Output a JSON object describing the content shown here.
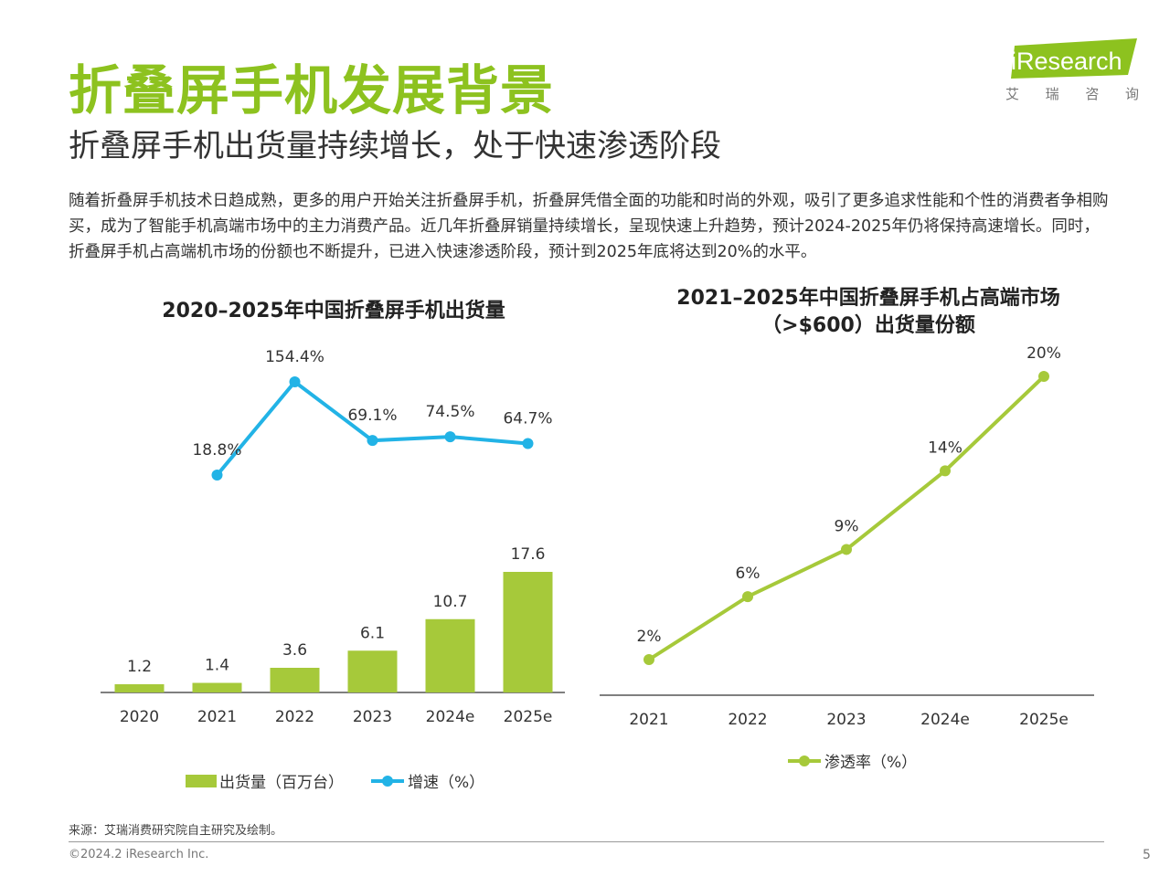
{
  "page": {
    "title": "折叠屏手机发展背景",
    "subtitle": "折叠屏手机出货量持续增长，处于快速渗透阶段",
    "body": "随着折叠屏手机技术日趋成熟，更多的用户开始关注折叠屏手机，折叠屏凭借全面的功能和时尚的外观，吸引了更多追求性能和个性的消费者争相购买，成为了智能手机高端市场中的主力消费产品。近几年折叠屏销量持续增长，呈现快速上升趋势，预计2024-2025年仍将保持高速增长。同时，折叠屏手机占高端机市场的份额也不断提升，已进入快速渗透阶段，预计到2025年底将达到20%的水平。",
    "source": "来源：艾瑞消费研究院自主研究及绘制。",
    "copyright": "©2024.2 iResearch Inc.",
    "page_number": "5"
  },
  "logo": {
    "text": "iResearch",
    "cn_chars": [
      "艾",
      "瑞",
      "咨",
      "询"
    ],
    "color": "#8dc21f"
  },
  "colors": {
    "green": "#a6c93a",
    "blue": "#22b3e6",
    "axis": "#555555"
  },
  "chart_data": [
    {
      "type": "bar",
      "title": "2020–2025年中国折叠屏手机出货量",
      "categories": [
        "2020",
        "2021",
        "2022",
        "2023",
        "2024e",
        "2025e"
      ],
      "series": [
        {
          "name": "出货量（百万台）",
          "type": "bar",
          "values": [
            1.2,
            1.4,
            3.6,
            6.1,
            10.7,
            17.6
          ],
          "labels": [
            "1.2",
            "1.4",
            "3.6",
            "6.1",
            "10.7",
            "17.6"
          ]
        },
        {
          "name": "增速（%）",
          "type": "line",
          "values": [
            null,
            18.8,
            154.4,
            69.1,
            74.5,
            64.7
          ],
          "labels": [
            "",
            "18.8%",
            "154.4%",
            "69.1%",
            "74.5%",
            "64.7%"
          ]
        }
      ],
      "legend": "bottom"
    },
    {
      "type": "line",
      "title": "2021–2025年中国折叠屏手机占高端市场（>$600）出货量份额",
      "title_lines": [
        "2021–2025年中国折叠屏手机占高端市场",
        "（>$600）出货量份额"
      ],
      "categories": [
        "2021",
        "2022",
        "2023",
        "2024e",
        "2025e"
      ],
      "series": [
        {
          "name": "渗透率（%）",
          "values": [
            2,
            6,
            9,
            14,
            20
          ],
          "labels": [
            "2%",
            "6%",
            "9%",
            "14%",
            "20%"
          ]
        }
      ],
      "legend": "bottom"
    }
  ]
}
